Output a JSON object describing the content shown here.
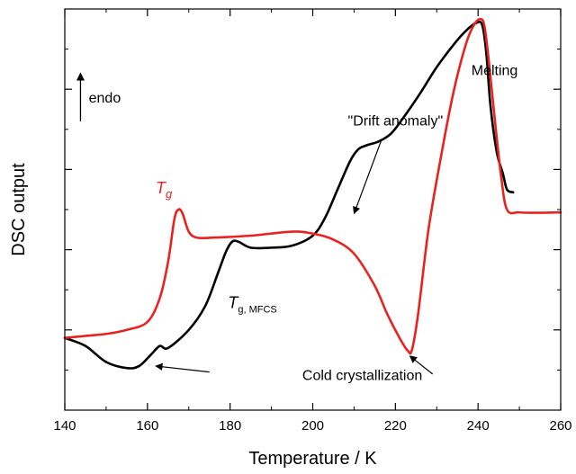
{
  "chart_data": {
    "type": "line",
    "title": "",
    "xlabel": "Temperature / K",
    "ylabel": "DSC output",
    "xlim": [
      140,
      260
    ],
    "ylim": [
      0,
      10
    ],
    "xticks": [
      140,
      160,
      180,
      200,
      220,
      240,
      260
    ],
    "x_minor_step": 10,
    "y_major_ticks": [
      2,
      4,
      6,
      8
    ],
    "y_minor_ticks": [
      1,
      3,
      5,
      7,
      9
    ],
    "grid": false,
    "colors": {
      "black_curve": "#000000",
      "red_curve": "#e8231f",
      "axis": "#000000"
    },
    "series": [
      {
        "color": "#000000",
        "x": [
          140,
          145,
          150,
          155,
          158,
          161,
          163,
          165,
          170,
          174,
          177,
          179,
          180.5,
          182,
          185,
          190,
          195,
          200,
          203,
          206,
          209,
          211,
          213,
          216,
          219,
          222,
          226,
          230,
          234,
          237,
          239.5,
          241,
          242,
          243,
          244.5,
          246,
          247,
          248.5
        ],
        "y": [
          1.8,
          1.6,
          1.2,
          1.05,
          1.1,
          1.4,
          1.6,
          1.55,
          2.0,
          2.6,
          3.4,
          3.95,
          4.2,
          4.2,
          4.05,
          4.05,
          4.1,
          4.35,
          4.8,
          5.5,
          6.2,
          6.5,
          6.6,
          6.7,
          6.9,
          7.3,
          7.9,
          8.55,
          9.1,
          9.45,
          9.65,
          9.6,
          8.9,
          7.6,
          6.45,
          5.9,
          5.5,
          5.43
        ]
      },
      {
        "color": "#e8231f",
        "x": [
          140,
          145,
          150,
          155,
          160,
          163,
          165,
          166.5,
          167.5,
          168.5,
          170,
          172,
          176,
          185,
          195,
          200,
          205,
          210,
          215,
          218,
          221,
          223,
          224,
          225.5,
          228,
          231,
          234,
          237,
          239,
          240.5,
          241.5,
          242.5,
          244,
          245.5,
          247,
          250,
          255,
          260
        ],
        "y": [
          1.8,
          1.85,
          1.9,
          2.0,
          2.2,
          2.8,
          3.7,
          4.75,
          5.0,
          4.9,
          4.45,
          4.3,
          4.3,
          4.35,
          4.45,
          4.4,
          4.25,
          3.9,
          3.1,
          2.4,
          1.8,
          1.48,
          1.5,
          2.4,
          4.5,
          6.3,
          7.9,
          9.1,
          9.6,
          9.75,
          9.6,
          8.8,
          7.3,
          5.9,
          5.0,
          4.93,
          4.92,
          4.93
        ]
      }
    ],
    "annotations": [
      {
        "text": "endo",
        "kind": "arrow-up",
        "arrow_x": 143.8,
        "arrow_from_y": 7.2,
        "arrow_to_y": 8.4,
        "label_x": 145.8,
        "label_y": 7.8
      },
      {
        "text": "Melting",
        "kind": "label",
        "x": 244,
        "y": 8.35
      },
      {
        "text": "\"Drift anomaly\"",
        "kind": "arrow",
        "label_x": 220,
        "label_y": 7.1,
        "arrow_from": [
          216.5,
          6.7
        ],
        "arrow_to": [
          210,
          4.9
        ]
      },
      {
        "text": "Cold crystallization",
        "kind": "double-arrow",
        "label_x": 212,
        "label_y": 0.75,
        "arrow_left_from": [
          175,
          0.95
        ],
        "arrow_left_to": [
          162,
          1.1
        ],
        "arrow_right_from": [
          229,
          0.9
        ],
        "arrow_right_to": [
          223.5,
          1.35
        ]
      },
      {
        "text": "T",
        "subscript": "g",
        "color": "#e8231f",
        "kind": "math-label",
        "x": 162,
        "y": 5.4
      },
      {
        "text": "T",
        "subscript": "g, MFCS",
        "color": "#000000",
        "kind": "math-label",
        "x": 179.5,
        "y": 2.55
      }
    ]
  }
}
